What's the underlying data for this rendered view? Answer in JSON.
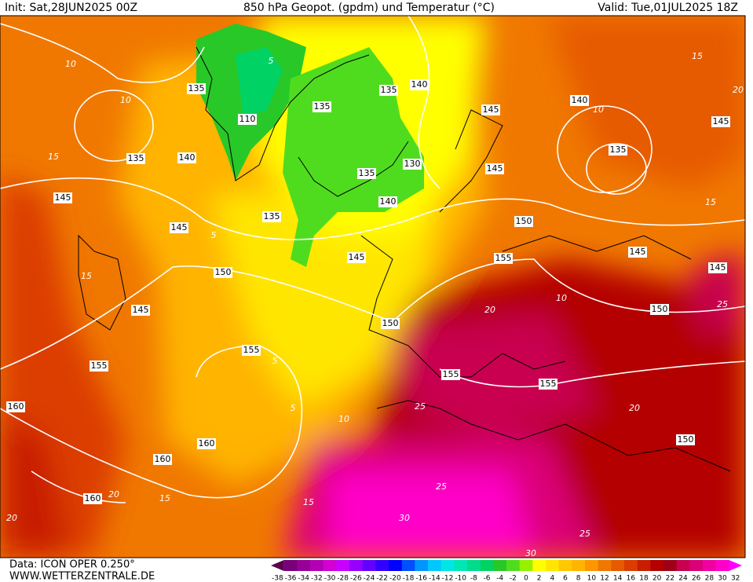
{
  "header": {
    "init": "Init: Sat,28JUN2025 00Z",
    "title": "850 hPa Geopot. (gpdm) und Temperatur (°C)",
    "valid": "Valid: Tue,01JUL2025 18Z"
  },
  "footer": {
    "data": "Data: ICON OPER 0.250°",
    "site": "WWW.WETTERZENTRALE.DE"
  },
  "geopotential_labels": [
    135,
    140,
    135,
    135,
    110,
    145,
    140,
    135,
    145,
    135,
    140,
    130,
    135,
    145,
    145,
    140,
    135,
    145,
    150,
    145,
    150,
    145,
    155,
    145,
    145,
    150,
    150,
    155,
    155,
    155,
    155,
    160,
    160,
    160,
    150,
    160
  ],
  "temperature_labels": [
    10,
    10,
    15,
    5,
    15,
    20,
    15,
    10,
    5,
    15,
    20,
    25,
    20,
    25,
    25,
    30,
    30,
    25,
    20,
    15,
    20,
    10,
    5,
    15,
    10,
    5
  ],
  "colorbar": {
    "labels": [
      -38,
      -36,
      -34,
      -32,
      -30,
      -28,
      -26,
      -24,
      -22,
      -20,
      -18,
      -16,
      -14,
      -12,
      -10,
      -8,
      -6,
      -4,
      -2,
      0,
      2,
      4,
      6,
      8,
      10,
      12,
      14,
      16,
      18,
      20,
      22,
      24,
      26,
      28,
      30,
      32
    ],
    "colors": [
      "#5a0050",
      "#780078",
      "#960096",
      "#b400b4",
      "#d200d2",
      "#c800ff",
      "#9600ff",
      "#6400ff",
      "#3200ff",
      "#0000ff",
      "#0050ff",
      "#0096ff",
      "#00c8ff",
      "#00e6e6",
      "#00e6b4",
      "#00dc8c",
      "#00d264",
      "#28c828",
      "#50dc1e",
      "#96f000",
      "#ffff00",
      "#ffe600",
      "#ffc800",
      "#ffb400",
      "#ff9600",
      "#f07800",
      "#e65a00",
      "#dc3c00",
      "#c81e00",
      "#b40000",
      "#a00014",
      "#c80050",
      "#dc0078",
      "#f000a0",
      "#ff00c8",
      "#ff00ff"
    ]
  }
}
